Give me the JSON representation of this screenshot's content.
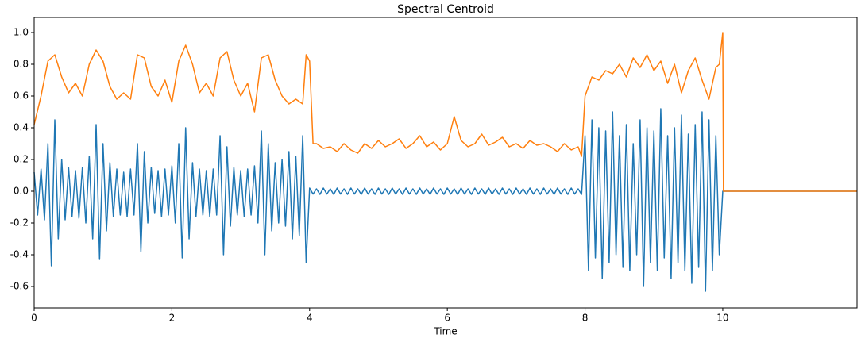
{
  "chart_data": {
    "type": "line",
    "title": "Spectral Centroid",
    "x_label": "Time",
    "xlim": [
      0,
      11.95
    ],
    "ylim": [
      -0.735,
      1.095
    ],
    "xticks": [
      0,
      2,
      4,
      6,
      8,
      10
    ],
    "yticks": [
      -0.6,
      -0.4,
      -0.2,
      {
        "value": 0,
        "label": "0.0"
      },
      0.2,
      0.4,
      0.6,
      0.8,
      {
        "value": 1,
        "label": "1.0"
      }
    ],
    "grid": false,
    "series": [
      {
        "color": "#1f77b4",
        "x": [
          0,
          0.05,
          0.1,
          0.15,
          0.2,
          0.25,
          0.3,
          0.35,
          0.4,
          0.45,
          0.5,
          0.55,
          0.6,
          0.65,
          0.7,
          0.75,
          0.8,
          0.85,
          0.9,
          0.95,
          1,
          1.05,
          1.1,
          1.15,
          1.2,
          1.25,
          1.3,
          1.35,
          1.4,
          1.45,
          1.5,
          1.55,
          1.6,
          1.65,
          1.7,
          1.75,
          1.8,
          1.85,
          1.9,
          1.95,
          2,
          2.05,
          2.1,
          2.15,
          2.2,
          2.25,
          2.3,
          2.35,
          2.4,
          2.45,
          2.5,
          2.55,
          2.6,
          2.65,
          2.7,
          2.75,
          2.8,
          2.85,
          2.9,
          2.95,
          3,
          3.05,
          3.1,
          3.15,
          3.2,
          3.25,
          3.3,
          3.35,
          3.4,
          3.45,
          3.5,
          3.55,
          3.6,
          3.65,
          3.7,
          3.75,
          3.8,
          3.85,
          3.9,
          3.95,
          4,
          4.05,
          4.1,
          4.15,
          4.2,
          4.25,
          4.3,
          4.35,
          4.4,
          4.45,
          4.5,
          4.55,
          4.6,
          4.65,
          4.7,
          4.75,
          4.8,
          4.85,
          4.9,
          4.95,
          5,
          5.05,
          5.1,
          5.15,
          5.2,
          5.25,
          5.3,
          5.35,
          5.4,
          5.45,
          5.5,
          5.55,
          5.6,
          5.65,
          5.7,
          5.75,
          5.8,
          5.85,
          5.9,
          5.95,
          6,
          6.05,
          6.1,
          6.15,
          6.2,
          6.25,
          6.3,
          6.35,
          6.4,
          6.45,
          6.5,
          6.55,
          6.6,
          6.65,
          6.7,
          6.75,
          6.8,
          6.85,
          6.9,
          6.95,
          7,
          7.05,
          7.1,
          7.15,
          7.2,
          7.25,
          7.3,
          7.35,
          7.4,
          7.45,
          7.5,
          7.55,
          7.6,
          7.65,
          7.7,
          7.75,
          7.8,
          7.85,
          7.9,
          7.95,
          8,
          8.05,
          8.1,
          8.15,
          8.2,
          8.25,
          8.3,
          8.35,
          8.4,
          8.45,
          8.5,
          8.55,
          8.6,
          8.65,
          8.7,
          8.75,
          8.8,
          8.85,
          8.9,
          8.95,
          9,
          9.05,
          9.1,
          9.15,
          9.2,
          9.25,
          9.3,
          9.35,
          9.4,
          9.45,
          9.5,
          9.55,
          9.6,
          9.65,
          9.7,
          9.75,
          9.8,
          9.85,
          9.9,
          9.95,
          10,
          11.95
        ],
        "values": [
          0.12,
          -0.15,
          0.14,
          -0.18,
          0.3,
          -0.47,
          0.45,
          -0.3,
          0.2,
          -0.18,
          0.15,
          -0.16,
          0.13,
          -0.17,
          0.15,
          -0.2,
          0.22,
          -0.3,
          0.42,
          -0.43,
          0.3,
          -0.25,
          0.18,
          -0.16,
          0.14,
          -0.15,
          0.12,
          -0.16,
          0.14,
          -0.15,
          0.3,
          -0.38,
          0.25,
          -0.2,
          0.15,
          -0.14,
          0.13,
          -0.16,
          0.14,
          -0.15,
          0.16,
          -0.2,
          0.3,
          -0.42,
          0.4,
          -0.3,
          0.18,
          -0.16,
          0.14,
          -0.15,
          0.13,
          -0.16,
          0.14,
          -0.15,
          0.35,
          -0.4,
          0.28,
          -0.22,
          0.15,
          -0.15,
          0.13,
          -0.16,
          0.14,
          -0.15,
          0.16,
          -0.2,
          0.38,
          -0.4,
          0.3,
          -0.25,
          0.18,
          -0.2,
          0.2,
          -0.22,
          0.25,
          -0.3,
          0.22,
          -0.28,
          0.35,
          -0.45,
          0.02,
          -0.018,
          0.015,
          -0.02,
          0.02,
          -0.018,
          0.015,
          -0.02,
          0.02,
          -0.018,
          0.015,
          -0.02,
          0.02,
          -0.018,
          0.015,
          -0.02,
          0.02,
          -0.018,
          0.015,
          -0.02,
          0.02,
          -0.018,
          0.015,
          -0.02,
          0.02,
          -0.018,
          0.015,
          -0.02,
          0.02,
          -0.018,
          0.015,
          -0.02,
          0.02,
          -0.018,
          0.015,
          -0.02,
          0.02,
          -0.018,
          0.015,
          -0.02,
          0.02,
          -0.018,
          0.015,
          -0.02,
          0.02,
          -0.018,
          0.015,
          -0.02,
          0.02,
          -0.018,
          0.015,
          -0.02,
          0.02,
          -0.018,
          0.015,
          -0.02,
          0.02,
          -0.018,
          0.015,
          -0.02,
          0.02,
          -0.018,
          0.015,
          -0.02,
          0.02,
          -0.018,
          0.015,
          -0.02,
          0.02,
          -0.018,
          0.015,
          -0.02,
          0.02,
          -0.018,
          0.015,
          -0.02,
          0.02,
          -0.018,
          0.015,
          -0.02,
          0.35,
          -0.5,
          0.45,
          -0.42,
          0.4,
          -0.55,
          0.38,
          -0.45,
          0.5,
          -0.4,
          0.35,
          -0.48,
          0.42,
          -0.5,
          0.3,
          -0.4,
          0.45,
          -0.6,
          0.4,
          -0.45,
          0.38,
          -0.5,
          0.52,
          -0.42,
          0.35,
          -0.55,
          0.4,
          -0.45,
          0.48,
          -0.5,
          0.36,
          -0.58,
          0.42,
          -0.48,
          0.5,
          -0.63,
          0.45,
          -0.5,
          0.35,
          -0.4,
          0,
          0
        ]
      },
      {
        "color": "#ff7f0e",
        "x": [
          0,
          0.1,
          0.2,
          0.3,
          0.4,
          0.5,
          0.6,
          0.7,
          0.8,
          0.9,
          1,
          1.1,
          1.2,
          1.3,
          1.4,
          1.5,
          1.6,
          1.7,
          1.8,
          1.9,
          2,
          2.1,
          2.2,
          2.3,
          2.4,
          2.5,
          2.6,
          2.7,
          2.8,
          2.9,
          3,
          3.1,
          3.2,
          3.3,
          3.4,
          3.5,
          3.6,
          3.7,
          3.8,
          3.9,
          3.95,
          4,
          4.05,
          4.1,
          4.2,
          4.3,
          4.4,
          4.5,
          4.6,
          4.7,
          4.8,
          4.9,
          5,
          5.1,
          5.2,
          5.3,
          5.4,
          5.5,
          5.6,
          5.7,
          5.8,
          5.9,
          6,
          6.1,
          6.2,
          6.3,
          6.4,
          6.5,
          6.6,
          6.7,
          6.8,
          6.9,
          7,
          7.1,
          7.2,
          7.3,
          7.4,
          7.5,
          7.6,
          7.7,
          7.8,
          7.9,
          7.95,
          8,
          8.1,
          8.2,
          8.3,
          8.4,
          8.5,
          8.6,
          8.7,
          8.8,
          8.9,
          9,
          9.1,
          9.2,
          9.3,
          9.4,
          9.5,
          9.6,
          9.7,
          9.8,
          9.9,
          9.95,
          10,
          10.01,
          11.95
        ],
        "values": [
          0.42,
          0.6,
          0.82,
          0.86,
          0.72,
          0.62,
          0.68,
          0.6,
          0.8,
          0.89,
          0.82,
          0.66,
          0.58,
          0.62,
          0.58,
          0.86,
          0.84,
          0.66,
          0.6,
          0.7,
          0.56,
          0.82,
          0.92,
          0.8,
          0.62,
          0.68,
          0.6,
          0.84,
          0.88,
          0.7,
          0.6,
          0.68,
          0.5,
          0.84,
          0.86,
          0.7,
          0.6,
          0.55,
          0.58,
          0.55,
          0.86,
          0.82,
          0.3,
          0.3,
          0.27,
          0.28,
          0.25,
          0.3,
          0.26,
          0.24,
          0.3,
          0.27,
          0.32,
          0.28,
          0.3,
          0.33,
          0.27,
          0.3,
          0.35,
          0.28,
          0.31,
          0.26,
          0.3,
          0.47,
          0.32,
          0.28,
          0.3,
          0.36,
          0.29,
          0.31,
          0.34,
          0.28,
          0.3,
          0.27,
          0.32,
          0.29,
          0.3,
          0.28,
          0.25,
          0.3,
          0.26,
          0.28,
          0.22,
          0.6,
          0.72,
          0.7,
          0.76,
          0.74,
          0.8,
          0.72,
          0.84,
          0.78,
          0.86,
          0.76,
          0.82,
          0.68,
          0.8,
          0.62,
          0.76,
          0.84,
          0.7,
          0.58,
          0.78,
          0.8,
          1,
          0,
          0
        ]
      }
    ]
  }
}
